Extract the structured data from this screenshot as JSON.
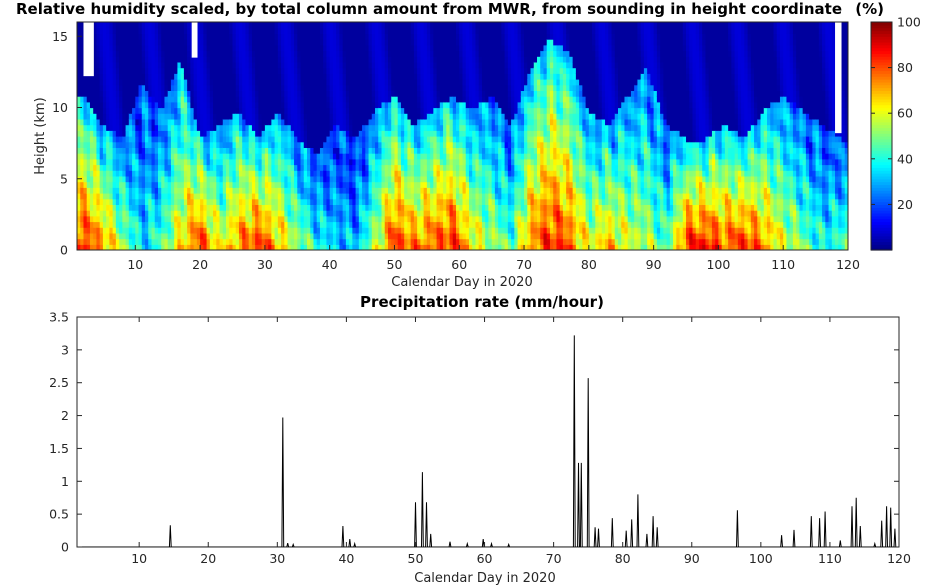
{
  "chart_data": [
    {
      "type": "heatmap",
      "title": "Relative humidity scaled, by total column amount from MWR, from sounding in height coordinate",
      "colorbar_label": "(%)",
      "xlabel": "Calendar Day in 2020",
      "ylabel": "Height (km)",
      "xlim": [
        1,
        120
      ],
      "ylim": [
        0,
        16
      ],
      "xticks": [
        10,
        20,
        30,
        40,
        50,
        60,
        70,
        80,
        90,
        100,
        110,
        120
      ],
      "yticks": [
        0,
        5,
        10,
        15
      ],
      "colorbar_range": [
        0,
        100
      ],
      "colorbar_ticks": [
        20,
        40,
        60,
        80,
        100
      ],
      "colormap": "jet",
      "profiles": [
        {
          "day": 2,
          "top": 10,
          "low": 85
        },
        {
          "day": 5,
          "top": 8,
          "low": 75
        },
        {
          "day": 8,
          "top": 7,
          "low": 55
        },
        {
          "day": 11,
          "top": 11,
          "low": 35
        },
        {
          "day": 14,
          "top": 9,
          "low": 45
        },
        {
          "day": 17,
          "top": 12.5,
          "low": 65
        },
        {
          "day": 20,
          "top": 7,
          "low": 85
        },
        {
          "day": 23,
          "top": 8,
          "low": 60
        },
        {
          "day": 26,
          "top": 9,
          "low": 75
        },
        {
          "day": 29,
          "top": 7,
          "low": 85
        },
        {
          "day": 32,
          "top": 9,
          "low": 70
        },
        {
          "day": 35,
          "top": 7,
          "low": 55
        },
        {
          "day": 38,
          "top": 6,
          "low": 40
        },
        {
          "day": 41,
          "top": 8,
          "low": 35
        },
        {
          "day": 44,
          "top": 7,
          "low": 30
        },
        {
          "day": 47,
          "top": 9,
          "low": 55
        },
        {
          "day": 50,
          "top": 10,
          "low": 85
        },
        {
          "day": 53,
          "top": 8,
          "low": 75
        },
        {
          "day": 56,
          "top": 9,
          "low": 80
        },
        {
          "day": 59,
          "top": 10,
          "low": 85
        },
        {
          "day": 62,
          "top": 9,
          "low": 65
        },
        {
          "day": 65,
          "top": 10,
          "low": 55
        },
        {
          "day": 68,
          "top": 8,
          "low": 45
        },
        {
          "day": 71,
          "top": 12,
          "low": 75
        },
        {
          "day": 74,
          "top": 14,
          "low": 85
        },
        {
          "day": 77,
          "top": 13,
          "low": 80
        },
        {
          "day": 80,
          "top": 9,
          "low": 60
        },
        {
          "day": 83,
          "top": 8,
          "low": 70
        },
        {
          "day": 86,
          "top": 10,
          "low": 60
        },
        {
          "day": 89,
          "top": 12,
          "low": 55
        },
        {
          "day": 92,
          "top": 8,
          "low": 45
        },
        {
          "day": 95,
          "top": 7,
          "low": 85
        },
        {
          "day": 98,
          "top": 7,
          "low": 88
        },
        {
          "day": 101,
          "top": 8,
          "low": 80
        },
        {
          "day": 104,
          "top": 7,
          "low": 85
        },
        {
          "day": 107,
          "top": 9,
          "low": 75
        },
        {
          "day": 110,
          "top": 10,
          "low": 60
        },
        {
          "day": 113,
          "top": 9,
          "low": 50
        },
        {
          "day": 116,
          "top": 8,
          "low": 40
        },
        {
          "day": 119,
          "top": 7,
          "low": 45
        }
      ],
      "missing": [
        {
          "day_start": 2.0,
          "day_end": 3.6,
          "height_from": 12.2
        },
        {
          "day_start": 18.7,
          "day_end": 19.6,
          "height_from": 13.5
        },
        {
          "day_start": 118.0,
          "day_end": 119.0,
          "height_from": 8.2
        }
      ]
    },
    {
      "type": "line",
      "title": "Precipitation rate  (mm/hour)",
      "xlabel": "Calendar Day in 2020",
      "ylabel": "",
      "xlim": [
        1,
        120
      ],
      "ylim": [
        0,
        3.5
      ],
      "xticks": [
        10,
        20,
        30,
        40,
        50,
        60,
        70,
        80,
        90,
        100,
        110,
        120
      ],
      "yticks": [
        0,
        0.5,
        1,
        1.5,
        2,
        2.5,
        3,
        3.5
      ],
      "color": "#000000",
      "spikes": [
        [
          14.5,
          0.33
        ],
        [
          30.8,
          1.97
        ],
        [
          31.5,
          0.06
        ],
        [
          32.3,
          0.04
        ],
        [
          39.5,
          0.32
        ],
        [
          40.5,
          0.12
        ],
        [
          41.2,
          0.05
        ],
        [
          50.0,
          0.68
        ],
        [
          51.0,
          1.14
        ],
        [
          51.6,
          0.68
        ],
        [
          52.2,
          0.2
        ],
        [
          55.0,
          0.08
        ],
        [
          57.5,
          0.05
        ],
        [
          59.8,
          0.12
        ],
        [
          61.0,
          0.05
        ],
        [
          63.5,
          0.04
        ],
        [
          73.0,
          3.22
        ],
        [
          73.6,
          1.28
        ],
        [
          74.0,
          1.28
        ],
        [
          75.0,
          2.57
        ],
        [
          76.0,
          0.3
        ],
        [
          76.5,
          0.28
        ],
        [
          78.5,
          0.44
        ],
        [
          80.5,
          0.25
        ],
        [
          81.3,
          0.42
        ],
        [
          82.2,
          0.8
        ],
        [
          83.5,
          0.2
        ],
        [
          84.4,
          0.47
        ],
        [
          85.0,
          0.3
        ],
        [
          96.6,
          0.56
        ],
        [
          103.0,
          0.18
        ],
        [
          104.8,
          0.26
        ],
        [
          107.3,
          0.47
        ],
        [
          108.5,
          0.44
        ],
        [
          109.3,
          0.54
        ],
        [
          111.5,
          0.1
        ],
        [
          113.2,
          0.62
        ],
        [
          113.8,
          0.75
        ],
        [
          114.4,
          0.32
        ],
        [
          116.5,
          0.05
        ],
        [
          117.5,
          0.4
        ],
        [
          118.2,
          0.62
        ],
        [
          118.8,
          0.6
        ],
        [
          119.4,
          0.28
        ]
      ]
    }
  ]
}
